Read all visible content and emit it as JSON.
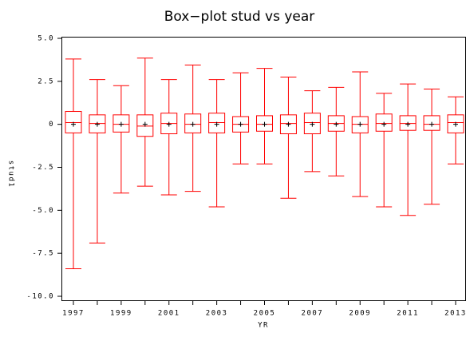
{
  "chart_data": {
    "type": "box",
    "title": "Box−plot stud vs year",
    "x_label": "YR",
    "y_label": "stud1",
    "categories": [
      "1997",
      null,
      "1999",
      null,
      "2001",
      null,
      "2003",
      null,
      "2005",
      null,
      "2007",
      null,
      "2009",
      null,
      "2011",
      null,
      "2013"
    ],
    "max": [
      3.8,
      2.6,
      2.25,
      3.85,
      2.6,
      3.45,
      2.6,
      3.0,
      3.25,
      2.75,
      1.95,
      2.15,
      3.05,
      1.8,
      2.35,
      2.05,
      1.6
    ],
    "q3": [
      0.75,
      0.55,
      0.55,
      0.55,
      0.65,
      0.6,
      0.65,
      0.45,
      0.5,
      0.55,
      0.65,
      0.5,
      0.45,
      0.6,
      0.5,
      0.5,
      0.55
    ],
    "median": [
      0.1,
      0.05,
      0,
      -0.1,
      0.05,
      0,
      0.1,
      0,
      0,
      0.05,
      0.1,
      0.05,
      0,
      0.05,
      0.05,
      0,
      0.1
    ],
    "q1": [
      -0.5,
      -0.5,
      -0.45,
      -0.7,
      -0.55,
      -0.5,
      -0.5,
      -0.45,
      -0.4,
      -0.55,
      -0.55,
      -0.4,
      -0.5,
      -0.4,
      -0.35,
      -0.35,
      -0.5
    ],
    "min": [
      -8.4,
      -6.9,
      -4.0,
      -3.6,
      -4.1,
      -3.9,
      -4.8,
      -2.3,
      -2.3,
      -4.3,
      -2.75,
      -3.0,
      -4.2,
      -4.8,
      -5.3,
      -4.65,
      -2.3
    ],
    "mean": [
      0,
      0,
      0,
      0,
      0,
      0,
      0,
      0,
      0,
      0,
      0,
      0,
      0,
      0,
      0,
      0,
      0
    ],
    "color": "#ff0000",
    "mean_color": "#000000",
    "ylim": [
      -10,
      5
    ],
    "yticks": [
      {
        "value": -10,
        "label": "-10.0"
      },
      {
        "value": -7.5,
        "label": "-7.5"
      },
      {
        "value": -5,
        "label": "-5.0"
      },
      {
        "value": -2.5,
        "label": "-2.5"
      },
      {
        "value": 0,
        "label": "0"
      },
      {
        "value": 2.5,
        "label": "2.5"
      },
      {
        "value": 5,
        "label": "5.0"
      }
    ]
  }
}
